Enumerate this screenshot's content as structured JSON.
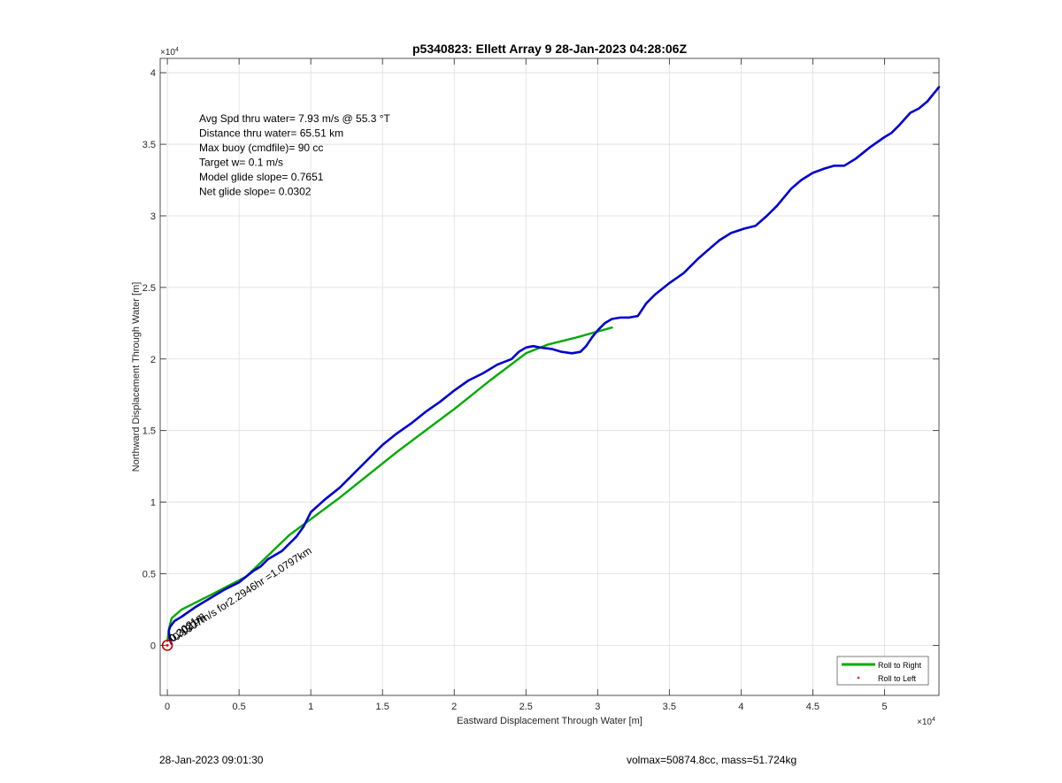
{
  "footer": {
    "timestamp": "28-Jan-2023 09:01:30",
    "mass_info": "volmax=50874.8cc, mass=51.724kg"
  },
  "chart_data": {
    "type": "line",
    "title": "p5340823: Ellett Array 9 28-Jan-2023 04:28:06Z",
    "xlabel": "Eastward Displacement Through Water [m]",
    "ylabel": "Northward Displacement Through Water [m]",
    "x_exponent_label": "×10",
    "y_exponent_label": "×10",
    "exponent": "4",
    "xlim": [
      -500,
      53800
    ],
    "ylim": [
      -3500,
      41000
    ],
    "xticks": [
      0,
      5000,
      10000,
      15000,
      20000,
      25000,
      30000,
      35000,
      40000,
      45000,
      50000
    ],
    "xtick_labels": [
      "0",
      "0.5",
      "1",
      "1.5",
      "2",
      "2.5",
      "3",
      "3.5",
      "4",
      "4.5",
      "5"
    ],
    "yticks": [
      0,
      5000,
      10000,
      15000,
      20000,
      25000,
      30000,
      35000,
      40000
    ],
    "ytick_labels": [
      "0",
      "0.5",
      "1",
      "1.5",
      "2",
      "2.5",
      "3",
      "3.5",
      "4"
    ],
    "grid": true,
    "legend_position": "bottom-right",
    "annotations": [
      "Avg Spd thru water=  7.93 m/s @  55.3 °T",
      "Distance thru water= 65.51 km",
      "Max buoy (cmdfile)= 90 cc",
      "Target w= 0.1 m/s",
      "Model glide slope= 0.7651",
      "Net glide slope= 0.0302"
    ],
    "segment_labels": [
      {
        "text": "0.1307m/s for2.2946hr =1.0797km",
        "x": 600,
        "y": 300,
        "angle": 33
      },
      {
        "text": "0.2021m",
        "x": 300,
        "y": 200,
        "angle": 33
      },
      {
        "text": "0.3021m",
        "x": 400,
        "y": 200,
        "angle": 38
      }
    ],
    "series": [
      {
        "name": "Roll to Right",
        "color": "#00aa00",
        "style": "line",
        "x": [
          0,
          150,
          300,
          1000,
          3000,
          5500,
          8500,
          12000,
          16000,
          20000,
          22500,
          25000,
          26500,
          28500,
          31000
        ],
        "y": [
          300,
          1300,
          1900,
          2500,
          3500,
          4800,
          7700,
          10300,
          13500,
          16500,
          18500,
          20400,
          21000,
          21500,
          22200
        ]
      },
      {
        "name": "Roll to Left",
        "color": "#ff0000",
        "style": "dot",
        "x": [
          0
        ],
        "y": [
          0
        ]
      },
      {
        "color": "#0000cc",
        "style": "line",
        "x": [
          300,
          200,
          150,
          100,
          200,
          350,
          500,
          1000,
          2000,
          3000,
          4000,
          5000,
          5500,
          6000,
          6500,
          7000,
          8000,
          8500,
          9000,
          9500,
          10000,
          11000,
          12000,
          13000,
          14000,
          15000,
          16000,
          17000,
          18000,
          19000,
          20000,
          21000,
          22000,
          23000,
          24000,
          24500,
          25000,
          25500,
          26000,
          26800,
          27500,
          28200,
          28800,
          29200,
          29600,
          30000,
          30500,
          31000,
          31600,
          32200,
          32800,
          33400,
          34000,
          35000,
          36000,
          37000,
          37800,
          38500,
          39300,
          40200,
          41000,
          41800,
          42500,
          43000,
          43500,
          44200,
          45000,
          45800,
          46500,
          47200,
          48000,
          49000,
          50000,
          50500,
          51000,
          51800,
          52400,
          53000,
          53800
        ],
        "y": [
          100,
          300,
          600,
          1000,
          1300,
          1500,
          1700,
          2000,
          2700,
          3300,
          3900,
          4400,
          4800,
          5200,
          5500,
          6000,
          6600,
          7100,
          7600,
          8300,
          9300,
          10200,
          11000,
          12000,
          13000,
          14000,
          14800,
          15500,
          16300,
          17000,
          17800,
          18500,
          19000,
          19600,
          20000,
          20500,
          20800,
          20900,
          20800,
          20700,
          20500,
          20400,
          20500,
          20900,
          21500,
          22000,
          22500,
          22800,
          22900,
          22900,
          23000,
          23900,
          24500,
          25300,
          26000,
          27000,
          27700,
          28300,
          28800,
          29100,
          29300,
          30000,
          30700,
          31300,
          31900,
          32500,
          33000,
          33300,
          33500,
          33500,
          34000,
          34800,
          35500,
          35800,
          36300,
          37200,
          37500,
          38000,
          39000
        ]
      }
    ]
  }
}
